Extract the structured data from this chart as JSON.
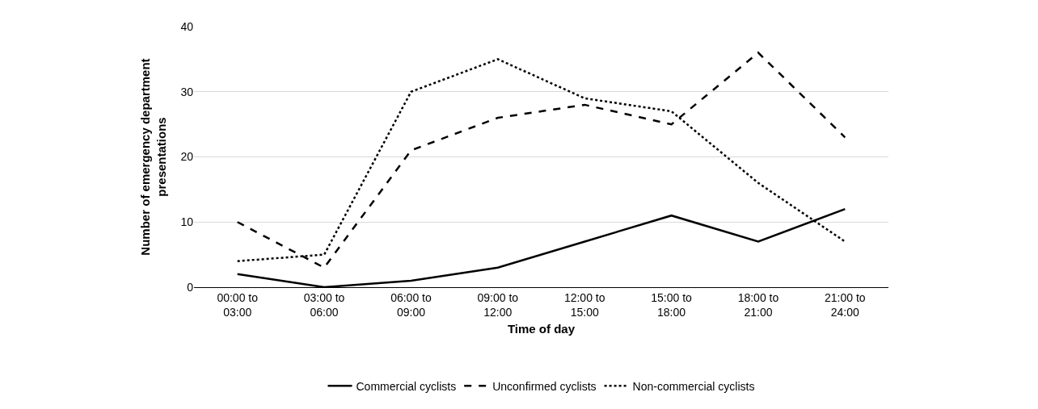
{
  "chart_data": {
    "type": "line",
    "xlabel": "Time of day",
    "ylabel": "Number of emergency department\npresentations",
    "categories": [
      "00:00 to\n03:00",
      "03:00 to\n06:00",
      "06:00 to\n09:00",
      "09:00 to\n12:00",
      "12:00 to\n15:00",
      "15:00 to\n18:00",
      "18:00 to\n21:00",
      "21:00 to\n24:00"
    ],
    "series": [
      {
        "name": "Commercial cyclists",
        "color": "#000000",
        "line_style": "solid",
        "values": [
          2,
          0,
          1,
          3,
          7,
          11,
          7,
          12
        ]
      },
      {
        "name": "Unconfirmed cyclists",
        "color": "#000000",
        "line_style": "dashed",
        "values": [
          10,
          3,
          21,
          26,
          28,
          25,
          36,
          23
        ]
      },
      {
        "name": "Non-commercial cyclists",
        "color": "#000000",
        "line_style": "dotted",
        "values": [
          4,
          5,
          30,
          35,
          29,
          27,
          16,
          7
        ]
      }
    ],
    "ylim": [
      0,
      40
    ],
    "yticks": [
      0,
      10,
      20,
      30,
      40
    ],
    "grid": "y",
    "legend": "bottom",
    "marker": "none"
  }
}
